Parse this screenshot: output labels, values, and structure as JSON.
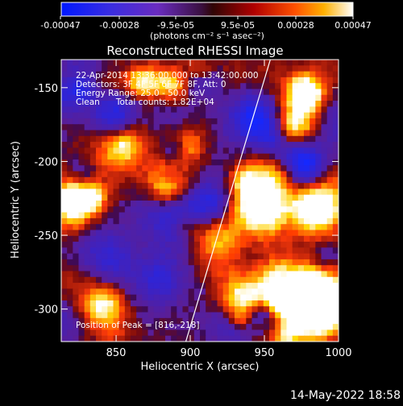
{
  "chart_data": {
    "type": "heatmap",
    "title": "Reconstructed RHESSI Image",
    "xlabel": "Heliocentric X (arcsec)",
    "ylabel": "Heliocentric Y (arcsec)",
    "xlim": [
      813,
      1000
    ],
    "ylim": [
      -322,
      -131
    ],
    "xticks": [
      850,
      900,
      950,
      1000
    ],
    "yticks": [
      -150,
      -200,
      -250,
      -300
    ],
    "colorbar": {
      "ticks": [
        "-0.00047",
        "-0.00028",
        "-9.5e-05",
        "9.5e-05",
        "0.00028",
        "0.00047"
      ],
      "unit_label": "(photons cm⁻² s⁻¹ asec⁻²)",
      "range": [
        -0.00047,
        0.00047
      ]
    },
    "annotations": [
      "22-Apr-2014 13:36:00.000 to 13:42:00.000",
      "Detectors: 3F 4F 5F 6F 7F 8F, Att: 0",
      "Energy Range: 25.0 - 50.0 keV",
      "Clean      Total counts: 1.82E+04"
    ],
    "peak_label": "Position of Peak = [816,-218]",
    "peak": {
      "x": 816,
      "y": -218
    },
    "limb_line": [
      [
        897,
        -322
      ],
      [
        954,
        -131
      ]
    ],
    "footer": "14-May-2022 18:58"
  }
}
